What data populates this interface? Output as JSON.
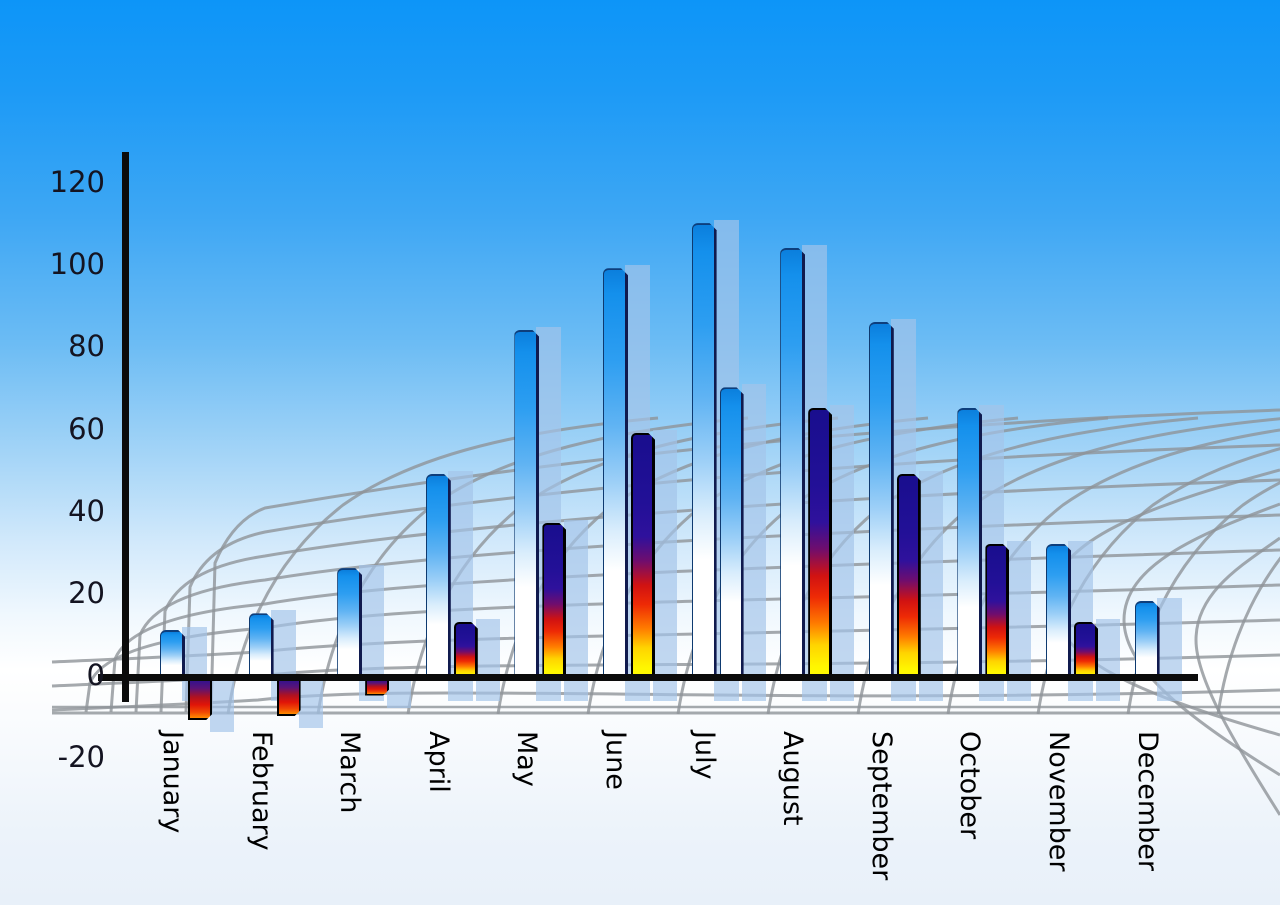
{
  "chart_data": {
    "type": "bar",
    "title": "",
    "xlabel": "",
    "ylabel": "",
    "categories": [
      "January",
      "February",
      "March",
      "April",
      "May",
      "June",
      "July",
      "August",
      "September",
      "October",
      "November",
      "December"
    ],
    "series": [
      {
        "name": "primary-blue-bars",
        "values": [
          11,
          15,
          26,
          49,
          84,
          99,
          110,
          104,
          86,
          65,
          32,
          18
        ]
      },
      {
        "name": "secondary-accent-bars",
        "values": [
          -11,
          -10,
          -5,
          13,
          37,
          59,
          70,
          65,
          49,
          32,
          13,
          null
        ],
        "variants": [
          "negative",
          "negative",
          "negative",
          "fire",
          "fire",
          "fire",
          "blue",
          "fire",
          "fire",
          "fire",
          "fire",
          null
        ]
      }
    ],
    "y_axis": {
      "min": -20,
      "max": 120,
      "tick_step": 20,
      "ticks": [
        120,
        100,
        80,
        60,
        40,
        20,
        0,
        -20
      ]
    },
    "x_tick_rotation_deg": 90,
    "grid": "perspective-mesh-background",
    "legend": "none",
    "colors": {
      "sky_top": "#0d95f8",
      "sky_bottom": "#e8f0f9",
      "bar_blue": "#0c84e4",
      "bar_fade": "#ffffff",
      "fire_navy": "#1c0f93",
      "fire_red": "#e01408",
      "fire_yellow": "#fff600",
      "negative_purple": "#31128f",
      "negative_orange": "#ff8c00",
      "shadow_blue": "rgba(163,196,233,0.68)",
      "grid_gray": "#8f9398",
      "axis_black": "#0b0b0b",
      "tick_label_color": "#141421",
      "month_label_color": "#000000"
    }
  }
}
